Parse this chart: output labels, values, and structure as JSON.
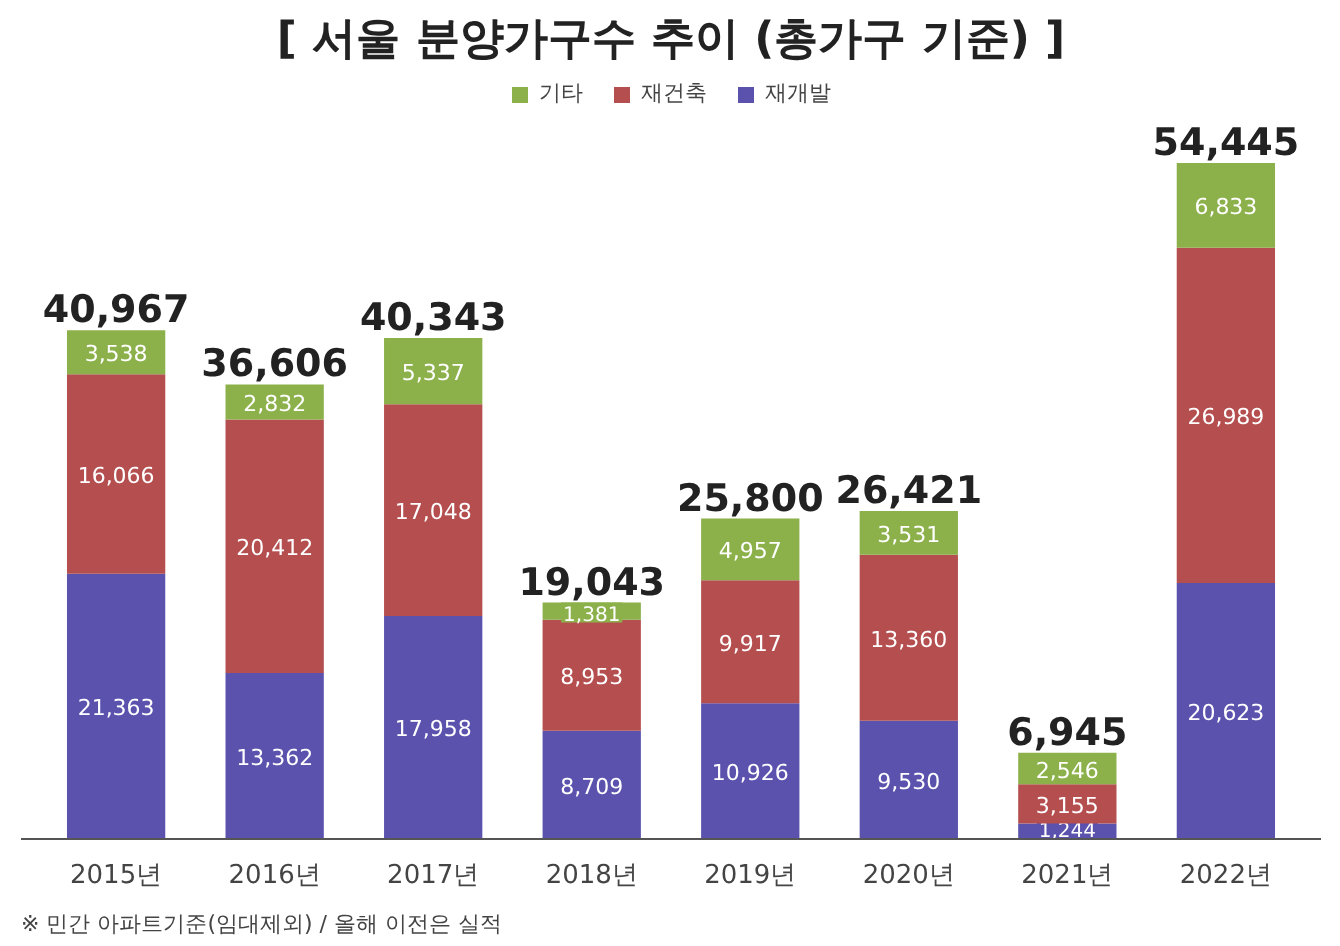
{
  "chart_data": {
    "type": "bar",
    "title": "[ 서울 분양가구수 추이 (총가구 기준) ]",
    "stacked": true,
    "categories": [
      "2015년",
      "2016년",
      "2017년",
      "2018년",
      "2019년",
      "2020년",
      "2021년",
      "2022년"
    ],
    "series": [
      {
        "name": "재개발",
        "color": "#5a52ad",
        "values": [
          21363,
          13362,
          17958,
          8709,
          10926,
          9530,
          1244,
          20623
        ],
        "value_labels": [
          "21,363",
          "13,362",
          "17,958",
          "8,709",
          "10,926",
          "9,530",
          "1,244",
          "20,623"
        ]
      },
      {
        "name": "재건축",
        "color": "#b54e4f",
        "values": [
          16066,
          20412,
          17048,
          8953,
          9917,
          13360,
          3155,
          26989
        ],
        "value_labels": [
          "16,066",
          "20,412",
          "17,048",
          "8,953",
          "9,917",
          "13,360",
          "3,155",
          "26,989"
        ]
      },
      {
        "name": "기타",
        "color": "#8cb14b",
        "values": [
          3538,
          2832,
          5337,
          1381,
          4957,
          3531,
          2546,
          6833
        ],
        "value_labels": [
          "3,538",
          "2,832",
          "5,337",
          "1,381",
          "4,957",
          "3,531",
          "2,546",
          "6,833"
        ]
      }
    ],
    "totals": [
      "40,967",
      "36,606",
      "40,343",
      "19,043",
      "25,800",
      "26,421",
      "6,945",
      "54,445"
    ],
    "legend": "top",
    "grid": false,
    "annotations": [
      "※ 민간 아파트기준(임대제외) / 올해 이전은 실적"
    ]
  }
}
